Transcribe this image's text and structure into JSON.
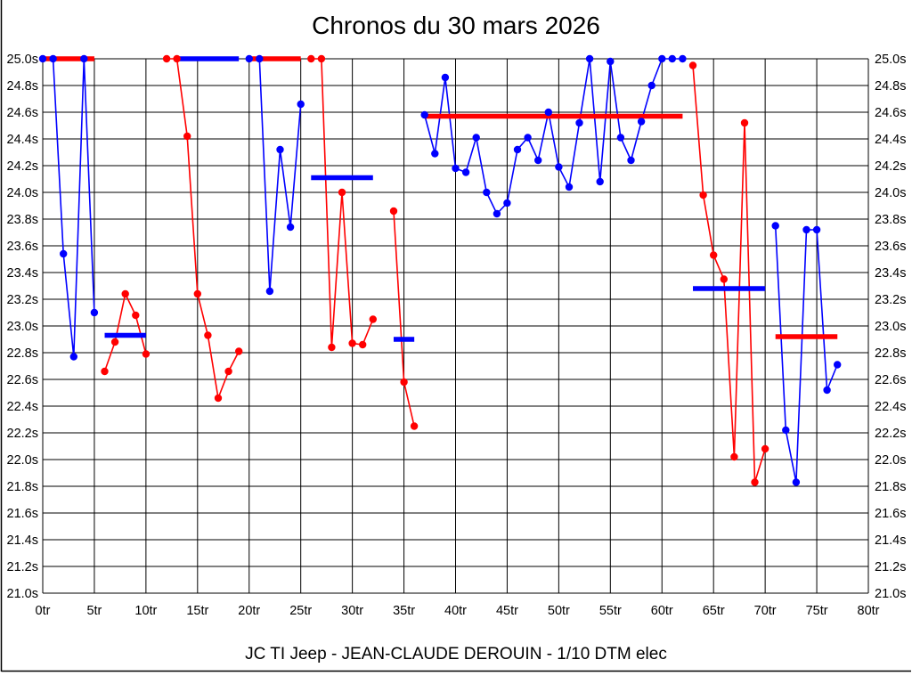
{
  "chart_data": {
    "type": "line",
    "title": "Chronos du 30 mars 2026",
    "footer": "JC TI Jeep - JEAN-CLAUDE DEROUIN - 1/10 DTM elec",
    "grid": true,
    "legend_position": "none",
    "x_axis": {
      "unit": "tr",
      "min": 0,
      "max": 80,
      "tick_step": 5,
      "tick_labels": [
        "0tr",
        "5tr",
        "10tr",
        "15tr",
        "20tr",
        "25tr",
        "30tr",
        "35tr",
        "40tr",
        "45tr",
        "50tr",
        "55tr",
        "60tr",
        "65tr",
        "70tr",
        "75tr",
        "80tr"
      ]
    },
    "y_axis": {
      "unit": "s",
      "min": 21.0,
      "max": 25.0,
      "tick_step": 0.2,
      "tick_labels": [
        "25.0s",
        "24.8s",
        "24.6s",
        "24.4s",
        "24.2s",
        "24.0s",
        "23.8s",
        "23.6s",
        "23.4s",
        "23.2s",
        "23.0s",
        "22.8s",
        "22.6s",
        "22.4s",
        "22.2s",
        "22.0s",
        "21.8s",
        "21.6s",
        "21.4s",
        "21.2s",
        "21.0s"
      ]
    },
    "series": [
      {
        "name": "laps-blue",
        "color": "#0000ff",
        "segments": [
          [
            [
              0,
              25.0
            ],
            [
              1,
              25.0
            ],
            [
              2,
              23.54
            ],
            [
              3,
              22.77
            ],
            [
              4,
              25.0
            ],
            [
              5,
              23.1
            ]
          ],
          [
            [
              20,
              25.0
            ],
            [
              21,
              25.0
            ],
            [
              22,
              23.26
            ],
            [
              23,
              24.32
            ],
            [
              24,
              23.74
            ],
            [
              25,
              24.66
            ]
          ],
          [
            [
              37,
              24.58
            ],
            [
              38,
              24.29
            ],
            [
              39,
              24.86
            ],
            [
              40,
              24.18
            ],
            [
              41,
              24.15
            ],
            [
              42,
              24.41
            ],
            [
              43,
              24.0
            ],
            [
              44,
              23.84
            ],
            [
              45,
              23.92
            ],
            [
              46,
              24.32
            ],
            [
              47,
              24.41
            ],
            [
              48,
              24.24
            ],
            [
              49,
              24.6
            ],
            [
              50,
              24.19
            ],
            [
              51,
              24.04
            ],
            [
              52,
              24.52
            ],
            [
              53,
              25.0
            ],
            [
              54,
              24.08
            ],
            [
              55,
              24.98
            ],
            [
              56,
              24.41
            ],
            [
              57,
              24.24
            ],
            [
              58,
              24.53
            ],
            [
              59,
              24.8
            ],
            [
              60,
              25.0
            ],
            [
              61,
              25.0
            ],
            [
              62,
              25.0
            ]
          ],
          [
            [
              71,
              23.75
            ],
            [
              72,
              22.22
            ],
            [
              73,
              21.83
            ],
            [
              74,
              23.72
            ],
            [
              75,
              23.72
            ],
            [
              76,
              22.52
            ],
            [
              77,
              22.71
            ]
          ]
        ]
      },
      {
        "name": "laps-red",
        "color": "#ff0000",
        "segments": [
          [
            [
              6,
              22.66
            ],
            [
              7,
              22.88
            ],
            [
              8,
              23.24
            ],
            [
              9,
              23.08
            ],
            [
              10,
              22.79
            ]
          ],
          [
            [
              12,
              25.0
            ],
            [
              13,
              25.0
            ],
            [
              14,
              24.42
            ],
            [
              15,
              23.24
            ],
            [
              16,
              22.93
            ],
            [
              17,
              22.46
            ],
            [
              18,
              22.66
            ],
            [
              19,
              22.81
            ]
          ],
          [
            [
              26,
              25.0
            ],
            [
              27,
              25.0
            ],
            [
              28,
              22.84
            ],
            [
              29,
              24.0
            ],
            [
              30,
              22.87
            ],
            [
              31,
              22.86
            ],
            [
              32,
              23.05
            ]
          ],
          [
            [
              34,
              23.86
            ],
            [
              35,
              22.58
            ],
            [
              36,
              22.25
            ]
          ],
          [
            [
              63,
              24.95
            ],
            [
              64,
              23.98
            ],
            [
              65,
              23.53
            ],
            [
              66,
              23.35
            ],
            [
              67,
              22.02
            ],
            [
              68,
              24.52
            ],
            [
              69,
              21.83
            ],
            [
              70,
              22.08
            ]
          ]
        ]
      }
    ],
    "stint_bars": [
      {
        "color": "#ff0000",
        "from_lap": 0,
        "to_lap": 5,
        "value": 25.0
      },
      {
        "color": "#0000ff",
        "from_lap": 6,
        "to_lap": 10,
        "value": 22.93
      },
      {
        "color": "#0000ff",
        "from_lap": 13,
        "to_lap": 19,
        "value": 25.0
      },
      {
        "color": "#ff0000",
        "from_lap": 20,
        "to_lap": 25,
        "value": 25.0
      },
      {
        "color": "#0000ff",
        "from_lap": 26,
        "to_lap": 32,
        "value": 24.11
      },
      {
        "color": "#0000ff",
        "from_lap": 34,
        "to_lap": 36,
        "value": 22.9
      },
      {
        "color": "#ff0000",
        "from_lap": 37,
        "to_lap": 62,
        "value": 24.57
      },
      {
        "color": "#0000ff",
        "from_lap": 63,
        "to_lap": 70,
        "value": 23.28
      },
      {
        "color": "#ff0000",
        "from_lap": 71,
        "to_lap": 77,
        "value": 22.92
      }
    ],
    "colors": {
      "grid": "#000000",
      "background": "#ffffff",
      "frame_border": "#000000"
    }
  }
}
